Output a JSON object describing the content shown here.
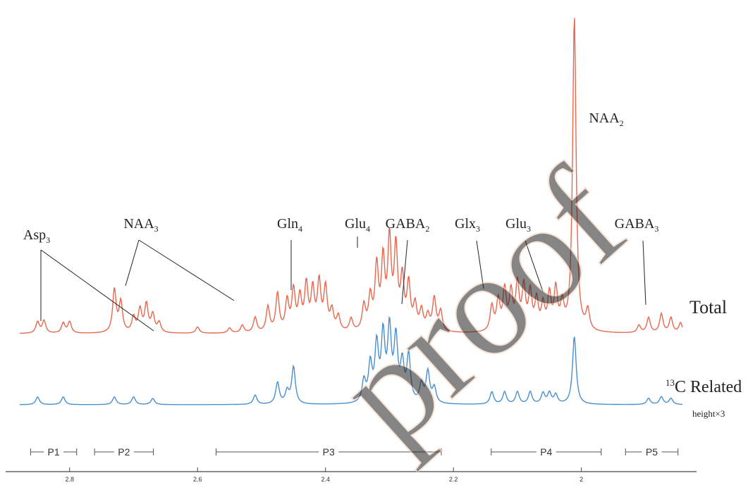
{
  "chart_data": {
    "type": "line",
    "x_unit": "ppm",
    "xlim": [
      2.9,
      1.82
    ],
    "x_ticks": [
      {
        "value": 2.8,
        "label": "2.8"
      },
      {
        "value": 2.6,
        "label": "2.6"
      },
      {
        "value": 2.4,
        "label": "2.4"
      },
      {
        "value": 2.2,
        "label": "2.2"
      },
      {
        "value": 2.0,
        "label": "2"
      }
    ],
    "series": [
      {
        "name": "Total",
        "color": "#e8674f",
        "peaks": [
          [
            2.85,
            0.045
          ],
          [
            2.84,
            0.05
          ],
          [
            2.81,
            0.04
          ],
          [
            2.8,
            0.045
          ],
          [
            2.73,
            0.17
          ],
          [
            2.72,
            0.12
          ],
          [
            2.7,
            0.06
          ],
          [
            2.69,
            0.09
          ],
          [
            2.68,
            0.11
          ],
          [
            2.67,
            0.07
          ],
          [
            2.66,
            0.04
          ],
          [
            2.6,
            0.025
          ],
          [
            2.55,
            0.02
          ],
          [
            2.53,
            0.03
          ],
          [
            2.51,
            0.06
          ],
          [
            2.49,
            0.1
          ],
          [
            2.475,
            0.15
          ],
          [
            2.46,
            0.12
          ],
          [
            2.45,
            0.16
          ],
          [
            2.44,
            0.13
          ],
          [
            2.43,
            0.18
          ],
          [
            2.42,
            0.16
          ],
          [
            2.41,
            0.19
          ],
          [
            2.4,
            0.17
          ],
          [
            2.39,
            0.08
          ],
          [
            2.38,
            0.06
          ],
          [
            2.36,
            0.05
          ],
          [
            2.34,
            0.1
          ],
          [
            2.33,
            0.13
          ],
          [
            2.32,
            0.25
          ],
          [
            2.31,
            0.27
          ],
          [
            2.3,
            0.35
          ],
          [
            2.29,
            0.32
          ],
          [
            2.28,
            0.2
          ],
          [
            2.27,
            0.18
          ],
          [
            2.26,
            0.1
          ],
          [
            2.25,
            0.08
          ],
          [
            2.24,
            0.06
          ],
          [
            2.23,
            0.13
          ],
          [
            2.22,
            0.08
          ],
          [
            2.14,
            0.1
          ],
          [
            2.13,
            0.12
          ],
          [
            2.12,
            0.16
          ],
          [
            2.11,
            0.15
          ],
          [
            2.1,
            0.18
          ],
          [
            2.09,
            0.17
          ],
          [
            2.08,
            0.15
          ],
          [
            2.07,
            0.12
          ],
          [
            2.06,
            0.1
          ],
          [
            2.05,
            0.14
          ],
          [
            2.04,
            0.16
          ],
          [
            2.03,
            0.1
          ],
          [
            2.011,
            1.25
          ],
          [
            1.99,
            0.08
          ],
          [
            1.91,
            0.03
          ],
          [
            1.895,
            0.06
          ],
          [
            1.875,
            0.075
          ],
          [
            1.86,
            0.06
          ],
          [
            1.845,
            0.04
          ]
        ]
      },
      {
        "name": "13C Related",
        "note": "height×3",
        "color": "#4a8fd0",
        "peaks": [
          [
            2.85,
            0.025
          ],
          [
            2.81,
            0.025
          ],
          [
            2.73,
            0.025
          ],
          [
            2.7,
            0.025
          ],
          [
            2.67,
            0.02
          ],
          [
            2.51,
            0.03
          ],
          [
            2.475,
            0.07
          ],
          [
            2.46,
            0.04
          ],
          [
            2.45,
            0.12
          ],
          [
            2.34,
            0.07
          ],
          [
            2.33,
            0.12
          ],
          [
            2.32,
            0.18
          ],
          [
            2.31,
            0.21
          ],
          [
            2.3,
            0.23
          ],
          [
            2.29,
            0.2
          ],
          [
            2.28,
            0.12
          ],
          [
            2.27,
            0.15
          ],
          [
            2.25,
            0.06
          ],
          [
            2.24,
            0.1
          ],
          [
            2.23,
            0.05
          ],
          [
            2.14,
            0.04
          ],
          [
            2.12,
            0.04
          ],
          [
            2.1,
            0.04
          ],
          [
            2.08,
            0.04
          ],
          [
            2.06,
            0.035
          ],
          [
            2.05,
            0.035
          ],
          [
            2.04,
            0.03
          ],
          [
            2.011,
            0.22
          ],
          [
            1.895,
            0.02
          ],
          [
            1.875,
            0.025
          ],
          [
            1.86,
            0.02
          ]
        ]
      }
    ],
    "annotations": [
      {
        "label": "Asp",
        "sub": "3"
      },
      {
        "label": "NAA",
        "sub": "3"
      },
      {
        "label": "Gln",
        "sub": "4"
      },
      {
        "label": "Glu",
        "sub": "4"
      },
      {
        "label": "GABA",
        "sub": "2"
      },
      {
        "label": "Glx",
        "sub": "3"
      },
      {
        "label": "Glu",
        "sub": "3"
      },
      {
        "label": "GABA",
        "sub": "3"
      },
      {
        "label": "NAA",
        "sub": "2"
      }
    ],
    "regions": [
      {
        "label": "P1",
        "from": 2.85,
        "to": 2.8
      },
      {
        "label": "P2",
        "from": 2.75,
        "to": 2.68
      },
      {
        "label": "P3",
        "from": 2.56,
        "to": 2.23
      },
      {
        "label": "P4",
        "from": 2.13,
        "to": 1.98
      },
      {
        "label": "P5",
        "from": 1.92,
        "to": 1.86
      }
    ],
    "legend": {
      "total": "Total",
      "c13_sup": "13",
      "c13_text": "C Related",
      "height_note": "height×3"
    }
  }
}
